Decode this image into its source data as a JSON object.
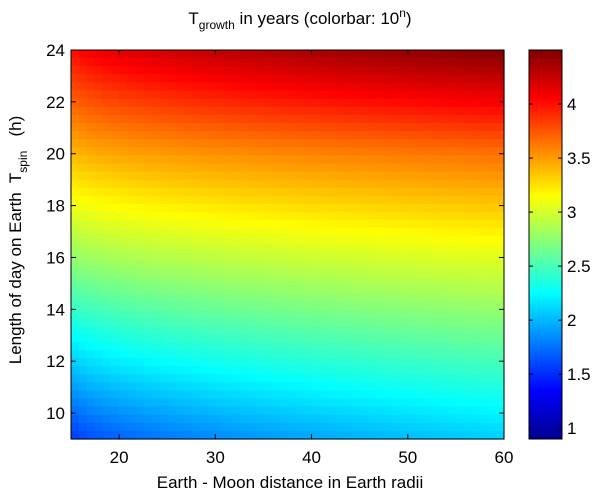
{
  "chart_data": {
    "type": "heatmap",
    "title": {
      "pre": "T",
      "sub": "growth",
      "mid": " in years (colorbar: 10",
      "sup": "n",
      "post": ")"
    },
    "xlabel": "Earth - Moon distance in Earth radii",
    "ylabel": {
      "main": "Length of day on Earth  T",
      "sub": "spin",
      "post": "   (h)"
    },
    "xlim": [
      15,
      60
    ],
    "ylim": [
      9,
      24
    ],
    "x_ticks": [
      {
        "value": 20,
        "label": "20"
      },
      {
        "value": 30,
        "label": "30"
      },
      {
        "value": 40,
        "label": "40"
      },
      {
        "value": 50,
        "label": "50"
      },
      {
        "value": 60,
        "label": "60"
      }
    ],
    "y_ticks": [
      {
        "value": 10,
        "label": "10"
      },
      {
        "value": 12,
        "label": "12"
      },
      {
        "value": 14,
        "label": "14"
      },
      {
        "value": 16,
        "label": "16"
      },
      {
        "value": 18,
        "label": "18"
      },
      {
        "value": 20,
        "label": "20"
      },
      {
        "value": 22,
        "label": "22"
      },
      {
        "value": 24,
        "label": "24"
      }
    ],
    "colorbar": {
      "range": [
        0.9,
        4.5
      ],
      "colormap": "jet",
      "ticks": [
        {
          "value": 1,
          "label": "1"
        },
        {
          "value": 1.5,
          "label": "1.5"
        },
        {
          "value": 2,
          "label": "2"
        },
        {
          "value": 2.5,
          "label": "2.5"
        },
        {
          "value": 3,
          "label": "3"
        },
        {
          "value": 3.5,
          "label": "3.5"
        },
        {
          "value": 4,
          "label": "4"
        }
      ]
    },
    "field_samples": {
      "x": [
        15,
        60
      ],
      "y": [
        9,
        12,
        16,
        20,
        24
      ],
      "z_at_x15": [
        1.5,
        2.05,
        2.75,
        3.38,
        3.97
      ],
      "z_at_x60": [
        2.08,
        2.5,
        3.05,
        3.65,
        4.5
      ]
    }
  }
}
